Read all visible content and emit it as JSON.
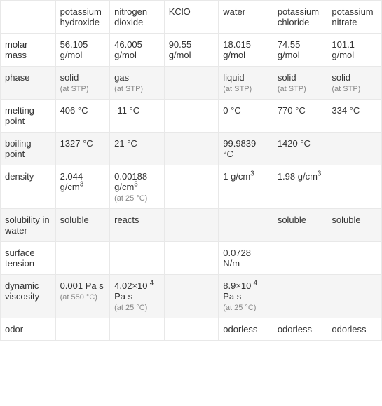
{
  "table": {
    "background_color": "#ffffff",
    "alt_row_color": "#f5f5f5",
    "border_color": "#e8e8e8",
    "text_color": "#333333",
    "sub_text_color": "#888888",
    "font_size": 13,
    "sub_font_size": 11,
    "columns": [
      {
        "label": ""
      },
      {
        "label": "potassium hydroxide"
      },
      {
        "label": "nitrogen dioxide"
      },
      {
        "label": "KClO"
      },
      {
        "label": "water"
      },
      {
        "label": "potassium chloride"
      },
      {
        "label": "potassium nitrate"
      }
    ],
    "rows": [
      {
        "label": "molar mass",
        "cells": [
          {
            "value": "56.105 g/mol"
          },
          {
            "value": "46.005 g/mol"
          },
          {
            "value": "90.55 g/mol"
          },
          {
            "value": "18.015 g/mol"
          },
          {
            "value": "74.55 g/mol"
          },
          {
            "value": "101.1 g/mol"
          }
        ]
      },
      {
        "label": "phase",
        "cells": [
          {
            "value": "solid",
            "sub": "(at STP)"
          },
          {
            "value": "gas",
            "sub": "(at STP)"
          },
          {
            "value": ""
          },
          {
            "value": "liquid",
            "sub": "(at STP)"
          },
          {
            "value": "solid",
            "sub": "(at STP)"
          },
          {
            "value": "solid",
            "sub": "(at STP)"
          }
        ]
      },
      {
        "label": "melting point",
        "cells": [
          {
            "value": "406 °C"
          },
          {
            "value": "-11 °C"
          },
          {
            "value": ""
          },
          {
            "value": "0 °C"
          },
          {
            "value": "770 °C"
          },
          {
            "value": "334 °C"
          }
        ]
      },
      {
        "label": "boiling point",
        "cells": [
          {
            "value": "1327 °C"
          },
          {
            "value": "21 °C"
          },
          {
            "value": ""
          },
          {
            "value": "99.9839 °C"
          },
          {
            "value": "1420 °C"
          },
          {
            "value": ""
          }
        ]
      },
      {
        "label": "density",
        "cells": [
          {
            "value": "2.044 g/cm",
            "sup": "3"
          },
          {
            "value": "0.00188 g/cm",
            "sup": "3",
            "sub": "(at 25 °C)"
          },
          {
            "value": ""
          },
          {
            "value": "1 g/cm",
            "sup": "3"
          },
          {
            "value": "1.98 g/cm",
            "sup": "3"
          },
          {
            "value": ""
          }
        ]
      },
      {
        "label": "solubility in water",
        "cells": [
          {
            "value": "soluble"
          },
          {
            "value": "reacts"
          },
          {
            "value": ""
          },
          {
            "value": ""
          },
          {
            "value": "soluble"
          },
          {
            "value": "soluble"
          }
        ]
      },
      {
        "label": "surface tension",
        "cells": [
          {
            "value": ""
          },
          {
            "value": ""
          },
          {
            "value": ""
          },
          {
            "value": "0.0728 N/m"
          },
          {
            "value": ""
          },
          {
            "value": ""
          }
        ]
      },
      {
        "label": "dynamic viscosity",
        "cells": [
          {
            "value": "0.001 Pa s",
            "sub": "(at 550 °C)"
          },
          {
            "value": "4.02×10",
            "sup": "-4",
            "post": " Pa s",
            "sub": "(at 25 °C)"
          },
          {
            "value": ""
          },
          {
            "value": "8.9×10",
            "sup": "-4",
            "post": " Pa s",
            "sub": "(at 25 °C)"
          },
          {
            "value": ""
          },
          {
            "value": ""
          }
        ]
      },
      {
        "label": "odor",
        "cells": [
          {
            "value": ""
          },
          {
            "value": ""
          },
          {
            "value": ""
          },
          {
            "value": "odorless"
          },
          {
            "value": "odorless"
          },
          {
            "value": "odorless"
          }
        ]
      }
    ]
  }
}
